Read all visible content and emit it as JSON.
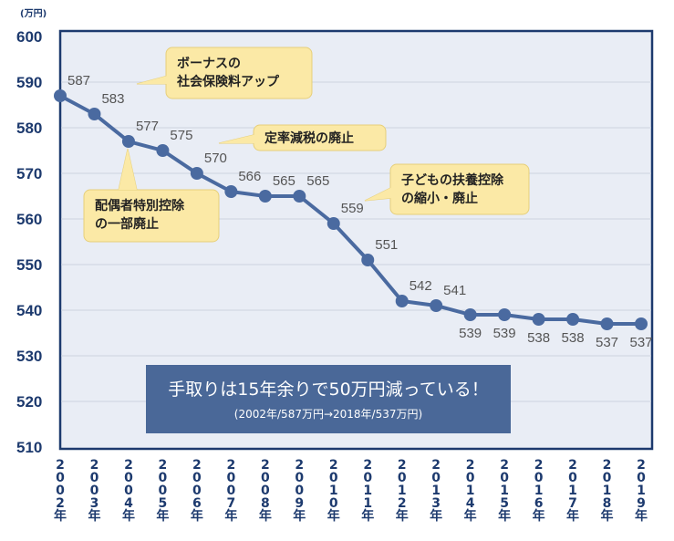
{
  "chart_data": {
    "type": "line",
    "unit_label": "(万円)",
    "ylim": [
      510,
      600
    ],
    "yticks": [
      600,
      590,
      580,
      570,
      560,
      550,
      540,
      530,
      520,
      510
    ],
    "x": [
      "2002年",
      "2003年",
      "2004年",
      "2005年",
      "2006年",
      "2007年",
      "2008年",
      "2009年",
      "2010年",
      "2011年",
      "2012年",
      "2013年",
      "2014年",
      "2015年",
      "2016年",
      "2017年",
      "2018年",
      "2019年"
    ],
    "values": [
      587,
      583,
      577,
      575,
      570,
      566,
      565,
      565,
      559,
      551,
      542,
      541,
      539,
      539,
      538,
      538,
      537,
      537
    ],
    "grid": true,
    "line_color": "#4a6aa0",
    "annotations": [
      {
        "lines": [
          "ボーナスの",
          "社会保険料アップ"
        ],
        "year": "2003年"
      },
      {
        "lines": [
          "定率減税の廃止"
        ],
        "year": "2007年"
      },
      {
        "lines": [
          "配偶者特別控除",
          "の一部廃止"
        ],
        "year": "2004年"
      },
      {
        "lines": [
          "子どもの扶養控除",
          "の縮小・廃止"
        ],
        "year": "2011年"
      }
    ],
    "summary": {
      "title": "手取りは15年余りで50万円減っている！",
      "subtitle": "(2002年/587万円→2018年/537万円)"
    }
  }
}
